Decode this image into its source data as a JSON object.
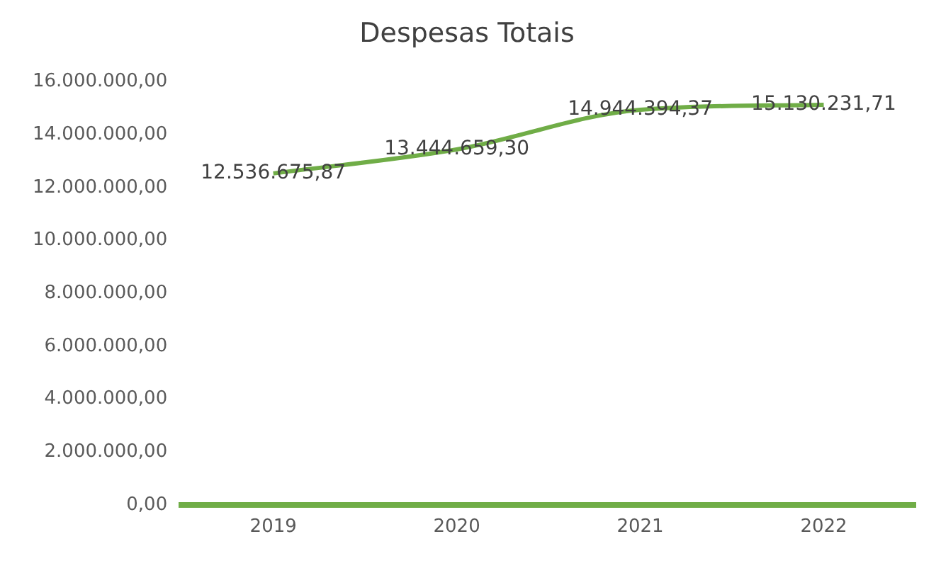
{
  "chart_data": {
    "type": "line",
    "title": "Despesas Totais",
    "categories": [
      "2019",
      "2020",
      "2021",
      "2022"
    ],
    "series": [
      {
        "color": "#70ad47",
        "values": [
          12536675.87,
          13444659.3,
          14944394.37,
          15130231.71
        ],
        "value_labels": [
          "12.536.675,87",
          "13.444.659,30",
          "14.944.394,37",
          "15.130.231,71"
        ]
      }
    ],
    "ylim": [
      0,
      16000000
    ],
    "yticks": [
      {
        "value": 0,
        "label": "0,00"
      },
      {
        "value": 2000000,
        "label": "2.000.000,00"
      },
      {
        "value": 4000000,
        "label": "4.000.000,00"
      },
      {
        "value": 6000000,
        "label": "6.000.000,00"
      },
      {
        "value": 8000000,
        "label": "8.000.000,00"
      },
      {
        "value": 10000000,
        "label": "10.000.000,00"
      },
      {
        "value": 12000000,
        "label": "12.000.000,00"
      },
      {
        "value": 14000000,
        "label": "14.000.000,00"
      },
      {
        "value": 16000000,
        "label": "16.000.000,00"
      }
    ],
    "grid": false,
    "legend": false,
    "marker": "none",
    "line_style": "solid"
  }
}
